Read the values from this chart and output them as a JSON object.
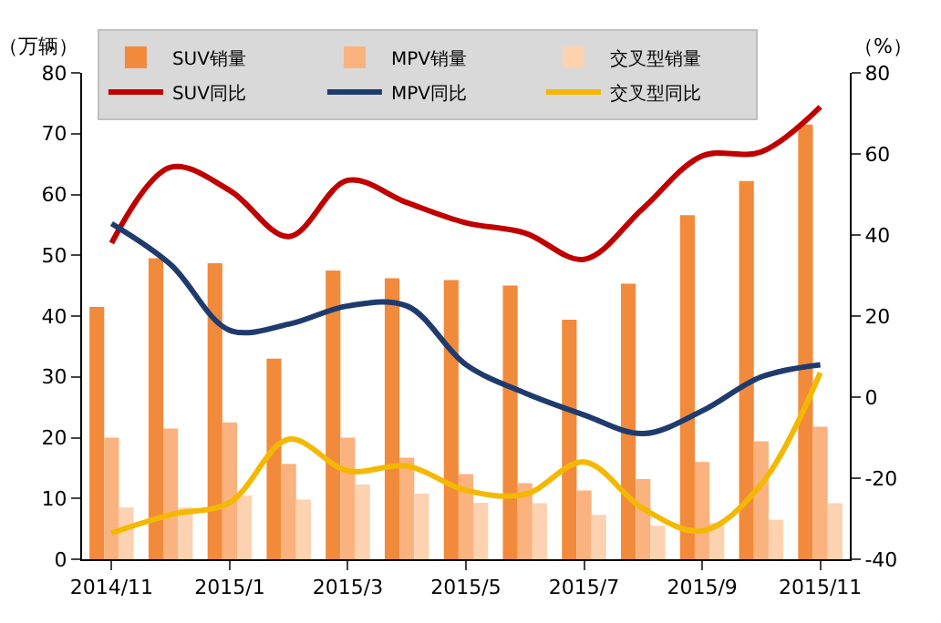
{
  "chart_data": {
    "type": "bar",
    "categories": [
      "2014/11",
      null,
      "2015/1",
      null,
      "2015/3",
      null,
      "2015/5",
      null,
      "2015/7",
      null,
      "2015/9",
      null,
      "2015/11"
    ],
    "ylabel": "（万辆）",
    "y2label": "（%）",
    "ylim": [
      0,
      80
    ],
    "yticks": [
      0,
      10,
      20,
      30,
      40,
      50,
      60,
      70,
      80
    ],
    "y2lim": [
      -40,
      80
    ],
    "y2ticks": [
      -40,
      -20,
      0,
      20,
      40,
      60,
      80
    ],
    "legend": "top",
    "series": [
      {
        "name": "SUV销量",
        "color": "#f28a3c",
        "values": [
          41.5,
          49.5,
          48.7,
          33,
          47.5,
          46.2,
          45.9,
          45,
          39.4,
          45.3,
          56.6,
          62.2,
          71.5
        ]
      },
      {
        "name": "MPV销量",
        "color": "#fab27e",
        "values": [
          20,
          21.5,
          22.5,
          15.7,
          20,
          16.7,
          14,
          12.5,
          11.3,
          13.2,
          16,
          19.4,
          21.8
        ]
      },
      {
        "name": "交叉型销量",
        "color": "#fcd2b0",
        "values": [
          8.5,
          8.5,
          10.5,
          9.8,
          12.3,
          10.8,
          9.3,
          9.2,
          7.3,
          5.5,
          6,
          6.5,
          9.2
        ]
      },
      {
        "name": "SUV同比",
        "type": "line",
        "axis": "y2",
        "color": "#c00000",
        "values": [
          38,
          56.7,
          51,
          39.6,
          53.5,
          48,
          43,
          40.5,
          34,
          46.6,
          59.5,
          60.5,
          71.6
        ]
      },
      {
        "name": "MPV同比",
        "type": "line",
        "axis": "y2",
        "color": "#1f3b6e",
        "values": [
          42.8,
          32.7,
          16.5,
          18,
          22.5,
          22.5,
          8,
          1,
          -4.4,
          -9,
          -3.4,
          5,
          8
        ]
      },
      {
        "name": "交叉型同比",
        "type": "line",
        "axis": "y2",
        "color": "#f5b800",
        "values": [
          -33.5,
          -29,
          -26,
          -10.4,
          -18.2,
          -17,
          -23,
          -24,
          -16,
          -27.5,
          -33,
          -21.5,
          6
        ]
      }
    ]
  }
}
